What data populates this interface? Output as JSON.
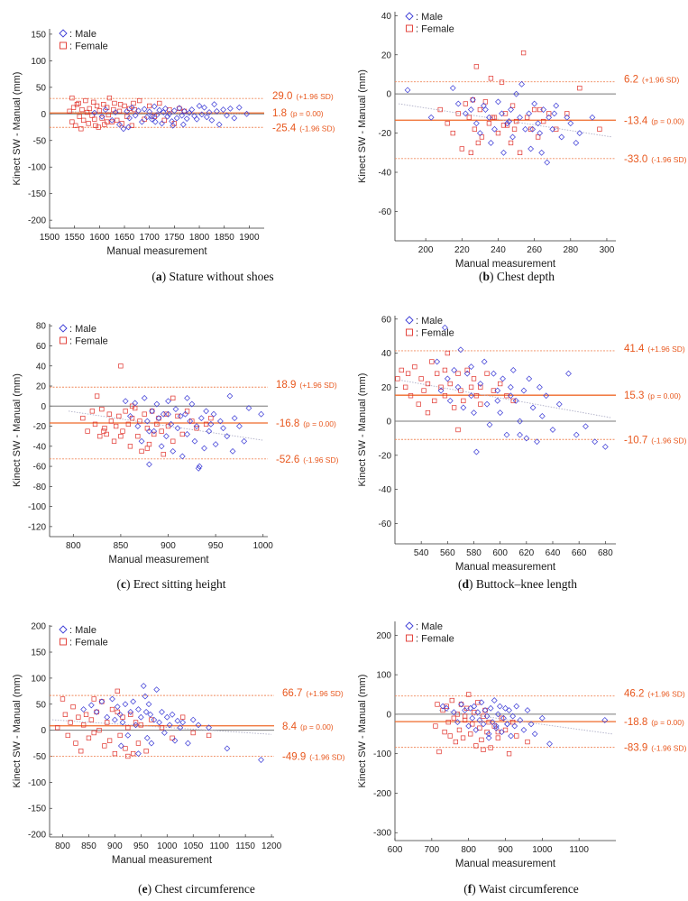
{
  "colors": {
    "male": "#3a3ad6",
    "female": "#e0322b",
    "sd_line": "#f08a5d",
    "mean_line": "#ef6a2a",
    "zero_line": "#777777",
    "trend": "#b0b0c8",
    "label": "#e8571d"
  },
  "legend": {
    "male": ": Male",
    "female": ": Female"
  },
  "common": {
    "ylabel": "Kinect SW - Manual (mm)",
    "xlabel": "Manual measurement",
    "upper_note": "(+1.96 SD)",
    "lower_note": "(-1.96 SD)",
    "mean_note_prefix": "(p",
    "mean_note_suffix": " = 0.00)"
  },
  "chart_data": [
    {
      "type": "scatter",
      "panel_letter": "a",
      "panel_title": "Stature without shoes",
      "xlim": [
        1500,
        1930
      ],
      "xticks": [
        1500,
        1550,
        1600,
        1650,
        1700,
        1750,
        1800,
        1850,
        1900
      ],
      "ylim": [
        -215,
        160
      ],
      "yticks": [
        -200,
        -150,
        -100,
        -50,
        0,
        50,
        100,
        150
      ],
      "mean": 1.8,
      "upper": 29.0,
      "lower": -25.4,
      "mean_label": "1.8",
      "upper_label": "29.0",
      "lower_label": "-25.4",
      "trend": [
        [
          1540,
          4
        ],
        [
          1900,
          0
        ]
      ],
      "male_x": [
        1590,
        1605,
        1612,
        1625,
        1632,
        1640,
        1648,
        1655,
        1660,
        1665,
        1672,
        1678,
        1685,
        1690,
        1695,
        1700,
        1705,
        1710,
        1715,
        1720,
        1725,
        1728,
        1732,
        1736,
        1740,
        1745,
        1750,
        1755,
        1760,
        1765,
        1770,
        1775,
        1780,
        1785,
        1790,
        1800,
        1805,
        1810,
        1815,
        1820,
        1825,
        1830,
        1835,
        1840,
        1848,
        1855,
        1862,
        1870,
        1880,
        1895,
        1658,
        1712,
        1747,
        1768,
        1795,
        1705
      ],
      "male_y": [
        2,
        -5,
        8,
        -12,
        3,
        -20,
        -28,
        5,
        -8,
        12,
        -3,
        6,
        -15,
        9,
        -6,
        4,
        -10,
        14,
        -2,
        7,
        -18,
        3,
        10,
        -5,
        0,
        -14,
        6,
        -8,
        11,
        -3,
        5,
        -9,
        2,
        8,
        -4,
        15,
        -1,
        12,
        -6,
        3,
        -12,
        18,
        5,
        -20,
        8,
        -3,
        10,
        -8,
        12,
        0,
        -25,
        -15,
        -22,
        -20,
        -10,
        -5
      ],
      "female_x": [
        1540,
        1545,
        1548,
        1552,
        1555,
        1558,
        1560,
        1565,
        1568,
        1572,
        1575,
        1578,
        1580,
        1585,
        1588,
        1590,
        1595,
        1598,
        1600,
        1605,
        1608,
        1610,
        1615,
        1618,
        1620,
        1625,
        1628,
        1630,
        1635,
        1640,
        1645,
        1650,
        1655,
        1660,
        1665,
        1670,
        1680,
        1690,
        1700,
        1710,
        1720,
        1730,
        1740,
        1750,
        1760,
        1770,
        1545,
        1563,
        1592,
        1615,
        1642,
        1668
      ],
      "female_y": [
        5,
        -15,
        12,
        -22,
        18,
        20,
        -5,
        8,
        -12,
        25,
        3,
        -18,
        10,
        -3,
        22,
        -10,
        15,
        -25,
        6,
        -8,
        18,
        -20,
        12,
        -2,
        30,
        -15,
        8,
        20,
        -12,
        5,
        -18,
        15,
        -5,
        10,
        -22,
        8,
        25,
        -10,
        15,
        -5,
        20,
        -12,
        8,
        -18,
        10,
        5,
        30,
        -28,
        -22,
        -15,
        18,
        20
      ]
    },
    {
      "type": "scatter",
      "panel_letter": "b",
      "panel_title": "Chest depth",
      "xlim": [
        183,
        305
      ],
      "xticks": [
        200,
        220,
        240,
        260,
        280,
        300
      ],
      "ylim": [
        -75,
        42
      ],
      "yticks": [
        -60,
        -40,
        -20,
        0,
        20,
        40
      ],
      "mean": -13.4,
      "upper": 6.2,
      "lower": -33.0,
      "mean_label": "-13.4",
      "upper_label": "6.2",
      "lower_label": "-33.0",
      "trend": [
        [
          185,
          -5
        ],
        [
          303,
          -22
        ]
      ],
      "male_x": [
        190,
        203,
        215,
        218,
        222,
        225,
        228,
        230,
        232,
        235,
        236,
        238,
        240,
        242,
        243,
        245,
        247,
        248,
        250,
        252,
        253,
        255,
        257,
        258,
        260,
        262,
        263,
        265,
        267,
        268,
        270,
        272,
        275,
        278,
        280,
        283,
        285,
        292,
        226,
        233,
        246,
        259,
        264,
        271
      ],
      "male_y": [
        2,
        -12,
        3,
        -5,
        -10,
        -8,
        -15,
        -20,
        -6,
        -12,
        -25,
        -18,
        -4,
        -10,
        -30,
        -15,
        -8,
        -22,
        0,
        -12,
        5,
        -18,
        -10,
        -28,
        -5,
        -15,
        -20,
        -8,
        -35,
        -12,
        -18,
        -6,
        -22,
        -12,
        -15,
        -25,
        -20,
        -12,
        -3,
        -8,
        -14,
        -18,
        -30,
        -10
      ],
      "female_x": [
        208,
        212,
        215,
        218,
        220,
        222,
        224,
        225,
        227,
        228,
        230,
        231,
        233,
        235,
        236,
        238,
        240,
        242,
        244,
        245,
        247,
        248,
        250,
        252,
        254,
        256,
        258,
        260,
        262,
        265,
        268,
        272,
        278,
        285,
        296,
        226,
        237,
        249,
        263,
        229,
        243
      ],
      "female_y": [
        -8,
        -15,
        -20,
        -10,
        -28,
        -5,
        -12,
        -30,
        -18,
        14,
        -8,
        -22,
        -4,
        -15,
        8,
        -12,
        -20,
        6,
        -10,
        -16,
        -25,
        -6,
        -14,
        -30,
        21,
        -12,
        -18,
        -8,
        -22,
        -14,
        -10,
        -18,
        -10,
        3,
        -18,
        -3,
        -12,
        -18,
        -8,
        -25,
        -16
      ]
    },
    {
      "type": "scatter",
      "panel_letter": "c",
      "panel_title": "Erect sitting height",
      "xlim": [
        775,
        1005
      ],
      "xticks": [
        800,
        850,
        900,
        950,
        1000
      ],
      "ylim": [
        -130,
        82
      ],
      "yticks": [
        -120,
        -100,
        -80,
        -60,
        -40,
        -20,
        0,
        20,
        40,
        60,
        80
      ],
      "mean": -16.8,
      "upper": 18.9,
      "lower": -52.6,
      "mean_label": "-16.8",
      "upper_label": "18.9",
      "lower_label": "-52.6",
      "trend": [
        [
          795,
          -5
        ],
        [
          1000,
          -34
        ]
      ],
      "male_x": [
        855,
        860,
        865,
        868,
        872,
        875,
        878,
        880,
        883,
        885,
        888,
        890,
        893,
        895,
        898,
        900,
        903,
        905,
        908,
        910,
        913,
        915,
        918,
        920,
        923,
        925,
        928,
        930,
        933,
        935,
        938,
        940,
        943,
        945,
        948,
        950,
        955,
        958,
        962,
        965,
        968,
        970,
        975,
        980,
        985,
        998,
        932,
        900,
        920,
        880
      ],
      "male_y": [
        5,
        -10,
        3,
        -20,
        -35,
        8,
        -15,
        -58,
        -5,
        -25,
        2,
        -12,
        -40,
        -8,
        -30,
        5,
        -18,
        -45,
        -3,
        -22,
        -10,
        -50,
        -8,
        -28,
        -15,
        2,
        -35,
        -20,
        -60,
        -12,
        -42,
        -5,
        -25,
        -18,
        -8,
        -38,
        -15,
        -22,
        -30,
        10,
        -45,
        -12,
        -20,
        -35,
        -2,
        -8,
        -62,
        -8,
        8,
        -25
      ],
      "female_x": [
        810,
        815,
        820,
        823,
        825,
        828,
        830,
        833,
        835,
        838,
        840,
        843,
        845,
        848,
        850,
        852,
        855,
        858,
        860,
        862,
        865,
        868,
        870,
        872,
        875,
        878,
        880,
        883,
        885,
        888,
        890,
        893,
        895,
        898,
        900,
        905,
        910,
        915,
        920,
        925,
        930,
        940,
        945,
        850,
        832,
        862,
        878,
        905
      ],
      "female_y": [
        -12,
        -25,
        -5,
        -18,
        10,
        -30,
        -3,
        -22,
        -28,
        -8,
        -15,
        -35,
        -20,
        -10,
        40,
        -25,
        -5,
        -18,
        -40,
        -12,
        -2,
        -30,
        -15,
        -45,
        -8,
        -22,
        -38,
        -5,
        -28,
        -18,
        -12,
        -25,
        -48,
        -8,
        -20,
        -35,
        -10,
        -28,
        -5,
        -15,
        -22,
        -18,
        -12,
        -30,
        -25,
        0,
        -42,
        8
      ]
    },
    {
      "type": "scatter",
      "panel_letter": "d",
      "panel_title": "Buttock–knee length",
      "xlim": [
        520,
        688
      ],
      "xticks": [
        540,
        560,
        580,
        600,
        620,
        640,
        660,
        680
      ],
      "ylim": [
        -72,
        62
      ],
      "yticks": [
        -60,
        -40,
        -20,
        0,
        20,
        40,
        60
      ],
      "mean": 15.3,
      "upper": 41.4,
      "lower": -10.7,
      "mean_label": "15.3",
      "upper_label": "41.4",
      "lower_label": "-10.7",
      "trend": [
        [
          525,
          24
        ],
        [
          685,
          2
        ]
      ],
      "male_x": [
        552,
        555,
        558,
        560,
        562,
        565,
        568,
        570,
        572,
        575,
        578,
        580,
        582,
        585,
        588,
        590,
        592,
        595,
        598,
        600,
        602,
        605,
        608,
        610,
        612,
        615,
        618,
        620,
        622,
        625,
        628,
        630,
        632,
        635,
        640,
        645,
        652,
        658,
        665,
        672,
        680,
        578,
        598,
        615,
        608
      ],
      "male_y": [
        35,
        18,
        55,
        25,
        12,
        30,
        20,
        42,
        8,
        28,
        15,
        5,
        -18,
        22,
        35,
        10,
        -2,
        28,
        18,
        5,
        25,
        -8,
        20,
        30,
        12,
        0,
        18,
        -10,
        25,
        8,
        -12,
        20,
        3,
        15,
        -5,
        10,
        28,
        -8,
        -3,
        -12,
        -15,
        32,
        12,
        -8,
        15
      ],
      "female_x": [
        522,
        525,
        528,
        530,
        532,
        535,
        538,
        540,
        542,
        545,
        548,
        550,
        552,
        555,
        558,
        560,
        562,
        565,
        568,
        570,
        572,
        575,
        578,
        580,
        582,
        585,
        590,
        595,
        600,
        605,
        610,
        545,
        558,
        568,
        585
      ],
      "female_y": [
        25,
        30,
        20,
        28,
        15,
        32,
        10,
        25,
        18,
        22,
        35,
        12,
        28,
        20,
        15,
        40,
        22,
        8,
        28,
        18,
        12,
        30,
        20,
        25,
        15,
        10,
        28,
        18,
        22,
        15,
        12,
        5,
        30,
        -5,
        20
      ]
    },
    {
      "type": "scatter",
      "panel_letter": "e",
      "panel_title": "Chest circumference",
      "xlim": [
        775,
        1205
      ],
      "xticks": [
        800,
        850,
        900,
        950,
        1000,
        1050,
        1100,
        1150,
        1200
      ],
      "ylim": [
        -205,
        202
      ],
      "yticks": [
        -200,
        -150,
        -100,
        -50,
        0,
        50,
        100,
        150,
        200
      ],
      "mean": 8.4,
      "upper": 66.7,
      "lower": -49.9,
      "mean_label": "8.4",
      "upper_label": "66.7",
      "lower_label": "-49.9",
      "trend": [
        [
          780,
          20
        ],
        [
          1200,
          -8
        ]
      ],
      "male_x": [
        840,
        855,
        865,
        875,
        885,
        895,
        900,
        905,
        910,
        915,
        920,
        925,
        930,
        935,
        940,
        945,
        950,
        955,
        960,
        962,
        965,
        968,
        970,
        975,
        980,
        985,
        990,
        995,
        1000,
        1005,
        1010,
        1015,
        1020,
        1025,
        1030,
        1040,
        1050,
        1060,
        1080,
        1115,
        1180,
        945,
        958,
        912
      ],
      "male_y": [
        40,
        48,
        35,
        55,
        25,
        60,
        20,
        45,
        30,
        15,
        50,
        -10,
        35,
        55,
        10,
        40,
        25,
        85,
        35,
        -15,
        50,
        30,
        -25,
        20,
        78,
        15,
        35,
        -5,
        25,
        10,
        30,
        -20,
        18,
        5,
        15,
        -25,
        20,
        10,
        5,
        -35,
        -57,
        -45,
        65,
        -30
      ],
      "female_x": [
        790,
        800,
        805,
        810,
        815,
        820,
        825,
        830,
        835,
        840,
        845,
        850,
        855,
        860,
        865,
        870,
        875,
        880,
        885,
        890,
        895,
        900,
        905,
        910,
        915,
        920,
        925,
        930,
        935,
        940,
        945,
        950,
        960,
        970,
        990,
        1010,
        1030,
        1050,
        1080,
        860,
        905,
        925
      ],
      "female_y": [
        5,
        60,
        30,
        -10,
        15,
        45,
        -25,
        25,
        -40,
        10,
        30,
        -15,
        20,
        -5,
        35,
        0,
        55,
        -30,
        15,
        -20,
        40,
        -45,
        75,
        -10,
        25,
        -35,
        5,
        30,
        -45,
        15,
        -25,
        10,
        -40,
        20,
        5,
        -15,
        25,
        -5,
        -10,
        60,
        35,
        -50
      ]
    },
    {
      "type": "scatter",
      "panel_letter": "f",
      "panel_title": "Waist circumference",
      "xlim": [
        600,
        1200
      ],
      "xticks": [
        600,
        700,
        800,
        900,
        1000,
        1100
      ],
      "ylim": [
        -320,
        235
      ],
      "yticks": [
        -300,
        -200,
        -100,
        0,
        100,
        200
      ],
      "mean": -18.8,
      "upper": 46.2,
      "lower": -83.9,
      "mean_label": "-18.8",
      "upper_label": "46.2",
      "lower_label": "-83.9",
      "trend": [
        [
          720,
          10
        ],
        [
          1190,
          -50
        ]
      ],
      "male_x": [
        730,
        740,
        760,
        770,
        780,
        790,
        800,
        805,
        810,
        815,
        820,
        825,
        830,
        835,
        840,
        845,
        850,
        855,
        860,
        865,
        870,
        875,
        880,
        885,
        890,
        895,
        900,
        905,
        910,
        915,
        920,
        925,
        930,
        940,
        950,
        960,
        970,
        980,
        1000,
        1020,
        1170,
        855,
        875,
        905
      ],
      "male_y": [
        20,
        15,
        5,
        -20,
        25,
        10,
        -30,
        15,
        -10,
        20,
        -40,
        5,
        -15,
        30,
        -25,
        10,
        -5,
        -50,
        15,
        -20,
        35,
        -30,
        0,
        20,
        -45,
        -10,
        15,
        -25,
        10,
        -55,
        -5,
        -30,
        20,
        -15,
        -40,
        10,
        -25,
        -50,
        -10,
        -75,
        -15,
        -60,
        -35,
        -25
      ],
      "female_x": [
        710,
        715,
        720,
        730,
        735,
        740,
        745,
        750,
        755,
        760,
        765,
        770,
        775,
        780,
        785,
        790,
        795,
        800,
        805,
        810,
        815,
        820,
        825,
        830,
        835,
        840,
        845,
        850,
        855,
        860,
        870,
        880,
        890,
        900,
        910,
        920,
        930,
        960,
        840,
        790,
        880
      ],
      "female_y": [
        -30,
        25,
        -95,
        10,
        -45,
        20,
        -20,
        -55,
        35,
        -10,
        -70,
        0,
        -40,
        25,
        -60,
        -15,
        15,
        50,
        -50,
        -25,
        5,
        -80,
        30,
        -35,
        -65,
        -5,
        10,
        -45,
        -20,
        -85,
        -30,
        -60,
        -10,
        -40,
        -100,
        -20,
        -55,
        -70,
        -90,
        -5,
        -45
      ]
    }
  ]
}
